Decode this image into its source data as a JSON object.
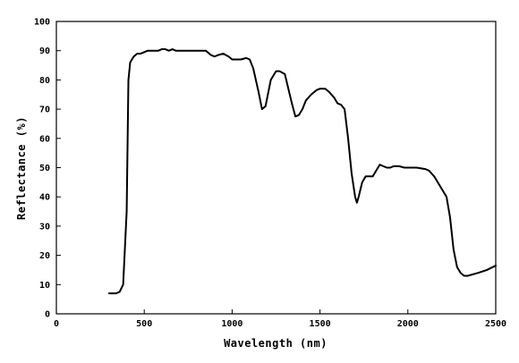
{
  "chart_data": {
    "type": "line",
    "title": "",
    "xlabel": "Wavelength (nm)",
    "ylabel": "Reflectance (%)",
    "xlim": [
      0,
      2500
    ],
    "ylim": [
      0,
      100
    ],
    "grid": false,
    "legend": "none",
    "x_ticks": [
      0,
      500,
      1000,
      1500,
      2000,
      2500
    ],
    "y_ticks": [
      0,
      10,
      20,
      30,
      40,
      50,
      60,
      70,
      80,
      90,
      100
    ],
    "line_color": "#000000",
    "series": [
      {
        "x": [
          300,
          340,
          360,
          380,
          400,
          410,
          420,
          440,
          460,
          480,
          500,
          520,
          540,
          560,
          580,
          600,
          620,
          640,
          660,
          680,
          700,
          750,
          800,
          850,
          880,
          900,
          920,
          950,
          980,
          1000,
          1050,
          1080,
          1100,
          1120,
          1150,
          1170,
          1190,
          1200,
          1220,
          1250,
          1270,
          1300,
          1320,
          1340,
          1360,
          1380,
          1400,
          1420,
          1450,
          1480,
          1500,
          1530,
          1550,
          1580,
          1600,
          1620,
          1640,
          1660,
          1680,
          1700,
          1710,
          1720,
          1740,
          1760,
          1780,
          1800,
          1820,
          1840,
          1860,
          1880,
          1900,
          1920,
          1950,
          1980,
          2000,
          2050,
          2100,
          2120,
          2150,
          2180,
          2200,
          2220,
          2240,
          2260,
          2280,
          2300,
          2320,
          2340,
          2400,
          2450,
          2500
        ],
        "y": [
          7,
          7,
          7.5,
          10,
          35,
          80,
          86,
          88,
          89,
          89,
          89.5,
          90,
          90,
          90,
          90,
          90.5,
          90.5,
          90,
          90.5,
          90,
          90,
          90,
          90,
          90,
          88.5,
          88,
          88.5,
          89,
          88,
          87,
          87,
          87.5,
          87,
          84,
          76,
          70,
          71,
          74,
          80,
          83,
          83,
          82,
          77,
          72,
          67.5,
          68,
          70,
          73,
          75,
          76.5,
          77,
          77,
          76,
          74,
          72,
          71.5,
          70,
          60,
          48,
          40,
          38,
          40,
          45,
          47,
          47,
          47,
          49,
          51,
          50.5,
          50,
          50,
          50.5,
          50.5,
          50,
          50,
          50,
          49.5,
          49,
          47,
          44,
          42,
          40,
          33,
          22,
          16,
          14,
          13,
          13,
          14,
          15,
          16.5
        ]
      }
    ]
  }
}
